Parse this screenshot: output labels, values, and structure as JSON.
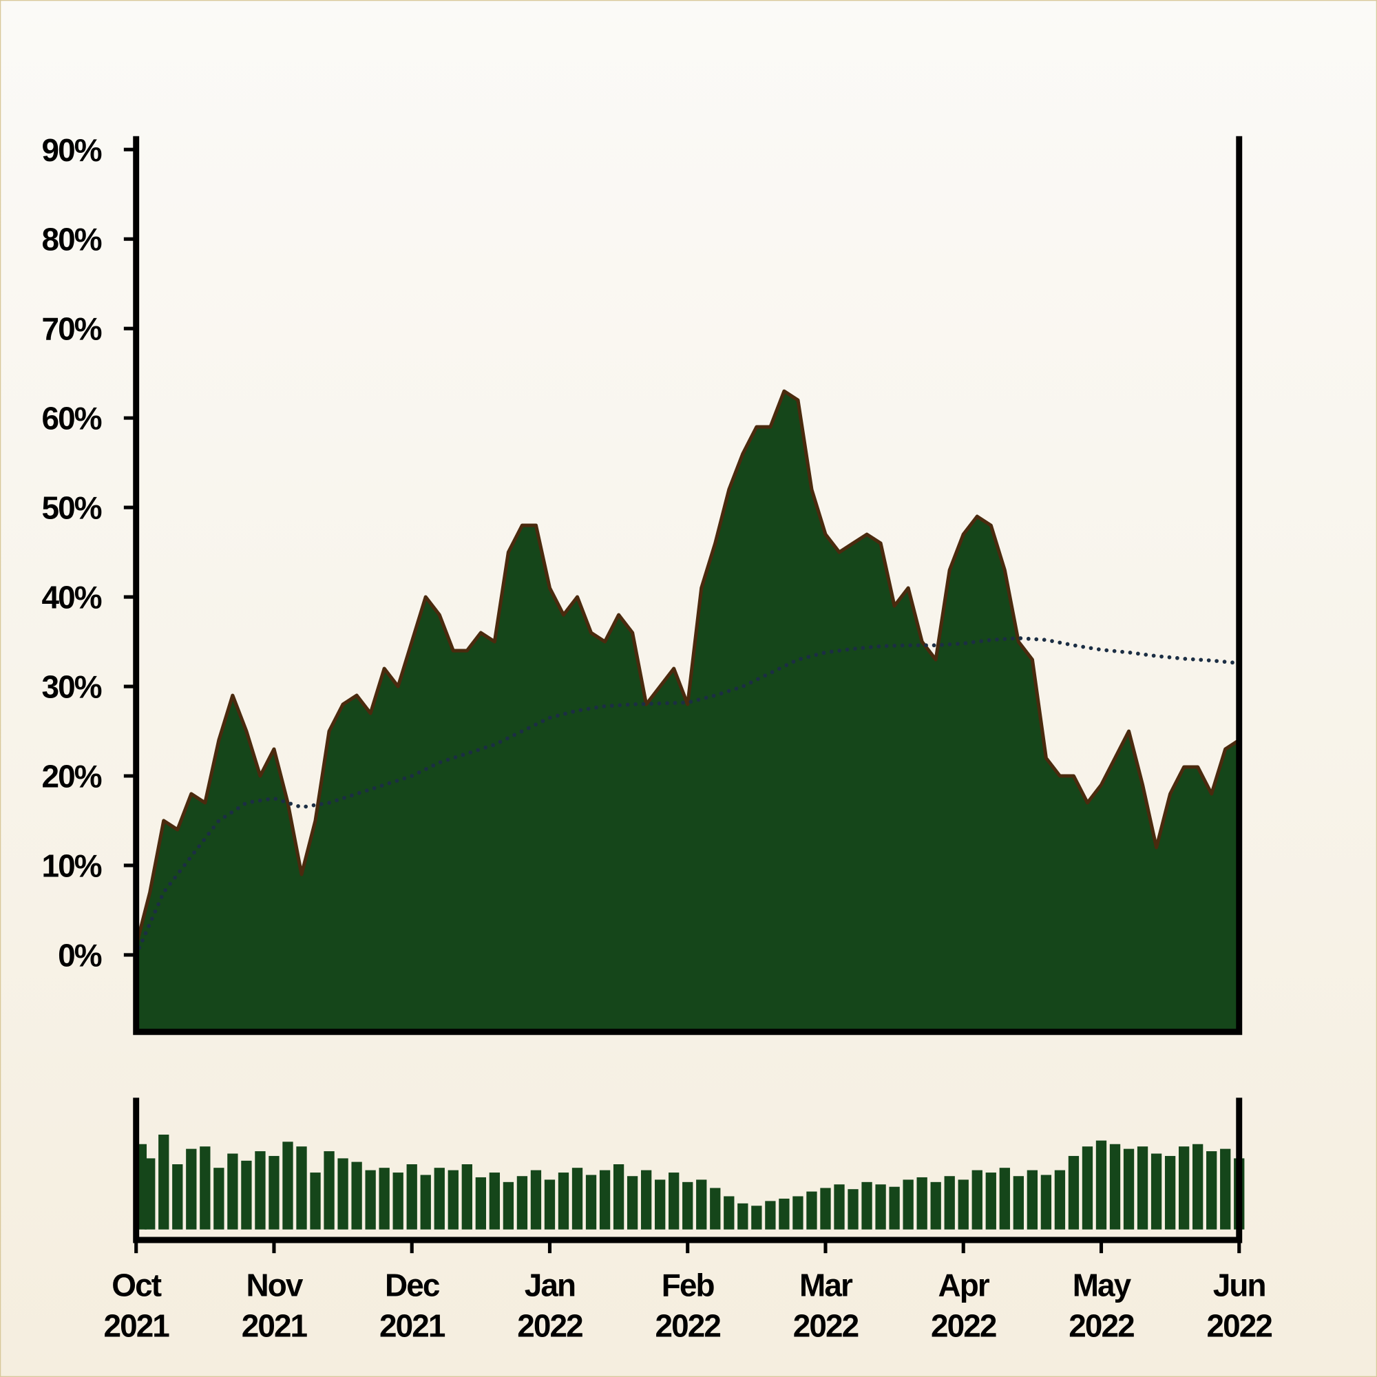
{
  "chart_data": {
    "type": "area",
    "color": "#15461a",
    "line_color": "#4a2a0e",
    "x": [
      0,
      0.1,
      0.2,
      0.3,
      0.4,
      0.5,
      0.6,
      0.7,
      0.8,
      0.9,
      1,
      1.1,
      1.2,
      1.3,
      1.4,
      1.5,
      1.6,
      1.7,
      1.8,
      1.9,
      2,
      2.1,
      2.2,
      2.3,
      2.4,
      2.5,
      2.6,
      2.7,
      2.8,
      2.9,
      3,
      3.1,
      3.2,
      3.3,
      3.4,
      3.5,
      3.6,
      3.7,
      3.8,
      3.9,
      4,
      4.1,
      4.2,
      4.3,
      4.4,
      4.5,
      4.6,
      4.7,
      4.8,
      4.9,
      5,
      5.1,
      5.2,
      5.3,
      5.4,
      5.5,
      5.6,
      5.7,
      5.8,
      5.9,
      6,
      6.1,
      6.2,
      6.3,
      6.4,
      6.5,
      6.6,
      6.7,
      6.8,
      6.9,
      7,
      7.1,
      7.2,
      7.3,
      7.4,
      7.5,
      7.6,
      7.7,
      7.8,
      7.9,
      8
    ],
    "values": [
      1,
      7,
      15,
      14,
      18,
      17,
      24,
      29,
      25,
      20,
      23,
      17,
      9,
      15,
      25,
      28,
      29,
      27,
      32,
      30,
      35,
      40,
      38,
      34,
      34,
      36,
      35,
      45,
      48,
      48,
      41,
      38,
      40,
      36,
      35,
      38,
      36,
      28,
      30,
      32,
      28,
      41,
      46,
      52,
      56,
      59,
      59,
      63,
      62,
      52,
      47,
      45,
      46,
      47,
      46,
      39,
      41,
      35,
      33,
      43,
      47,
      49,
      48,
      43,
      35,
      33,
      22,
      20,
      20,
      17,
      19,
      22,
      25,
      19,
      12,
      18,
      21,
      21,
      18,
      23,
      24
    ],
    "moving_average": {
      "color": "#1c2e44",
      "x": [
        0,
        0.2,
        0.4,
        0.6,
        0.8,
        1,
        1.2,
        1.4,
        1.6,
        1.8,
        2,
        2.2,
        2.4,
        2.6,
        2.8,
        3,
        3.2,
        3.4,
        3.6,
        3.8,
        4,
        4.2,
        4.4,
        4.6,
        4.8,
        5,
        5.2,
        5.4,
        5.6,
        5.8,
        6,
        6.2,
        6.4,
        6.6,
        6.8,
        7,
        7.2,
        7.4,
        7.6,
        7.8,
        8
      ],
      "values": [
        0,
        7,
        11,
        15,
        17,
        17.5,
        16.5,
        17,
        18,
        19,
        20,
        21.5,
        22.5,
        23.5,
        25,
        26.5,
        27.3,
        27.8,
        28,
        28.1,
        28.2,
        29,
        30,
        31.5,
        33,
        33.8,
        34.2,
        34.5,
        34.6,
        34.6,
        34.8,
        35.2,
        35.4,
        35.2,
        34.6,
        34.1,
        33.8,
        33.4,
        33.1,
        32.9,
        32.6
      ]
    },
    "volume": {
      "color": "#15461a",
      "ylim": [
        0,
        100
      ],
      "values": [
        72,
        60,
        80,
        55,
        68,
        70,
        52,
        64,
        58,
        66,
        62,
        74,
        70,
        48,
        66,
        60,
        57,
        50,
        52,
        48,
        55,
        46,
        52,
        50,
        55,
        44,
        48,
        40,
        45,
        50,
        42,
        48,
        52,
        46,
        50,
        55,
        45,
        50,
        42,
        48,
        40,
        42,
        35,
        28,
        22,
        20,
        24,
        26,
        28,
        32,
        35,
        38,
        34,
        40,
        38,
        36,
        42,
        44,
        40,
        45,
        42,
        50,
        48,
        52,
        45,
        50,
        46,
        50,
        62,
        70,
        75,
        72,
        68,
        70,
        64,
        62,
        70,
        72,
        66,
        68,
        60
      ]
    },
    "xlim": [
      0,
      8
    ],
    "xticks": [
      {
        "value": 0,
        "label": "Oct 2021"
      },
      {
        "value": 1,
        "label": "Nov 2021"
      },
      {
        "value": 2,
        "label": "Dec 2021"
      },
      {
        "value": 3,
        "label": "Jan 2022"
      },
      {
        "value": 4,
        "label": "Feb 2022"
      },
      {
        "value": 5,
        "label": "Mar 2022"
      },
      {
        "value": 6,
        "label": "Apr 2022"
      },
      {
        "value": 7,
        "label": "May 2022"
      },
      {
        "value": 8,
        "label": "Jun 2022"
      }
    ],
    "ylim": [
      -8.6,
      91.5
    ],
    "yticks": [
      {
        "value": 0,
        "label": "0%"
      },
      {
        "value": 10,
        "label": "10%"
      },
      {
        "value": 20,
        "label": "20%"
      },
      {
        "value": 30,
        "label": "30%"
      },
      {
        "value": 40,
        "label": "40%"
      },
      {
        "value": 50,
        "label": "50%"
      },
      {
        "value": 60,
        "label": "60%"
      },
      {
        "value": 70,
        "label": "70%"
      },
      {
        "value": 80,
        "label": "80%"
      },
      {
        "value": 90,
        "label": "90%"
      }
    ]
  }
}
